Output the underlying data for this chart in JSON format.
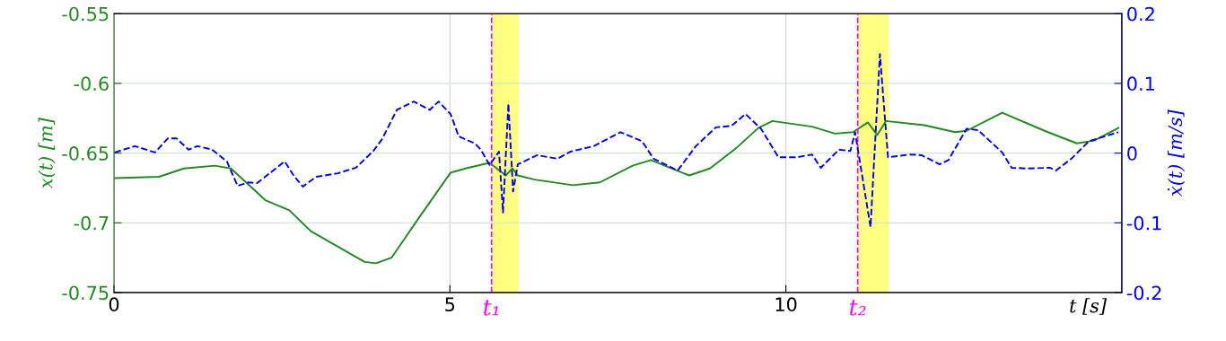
{
  "chart_data": {
    "type": "line",
    "xlabel": "t [s]",
    "ylabel": "x(t) [m]",
    "y2label": "ẋ(t) [m/s]",
    "xlim": [
      0,
      15
    ],
    "xticks": [
      0,
      5,
      10
    ],
    "ylim": [
      -0.75,
      -0.55
    ],
    "yticks": [
      -0.75,
      -0.7,
      -0.65,
      -0.6,
      -0.55
    ],
    "y2lim": [
      -0.2,
      0.2
    ],
    "y2ticks": [
      -0.2,
      -0.1,
      0,
      0.1,
      0.2
    ],
    "grid": true,
    "legend": false,
    "series": [
      {
        "color": "#1e8c1e",
        "line_style": "solid",
        "x": [
          0.01,
          0.67,
          1.04,
          1.5,
          1.74,
          2.26,
          2.61,
          2.93,
          3.73,
          3.9,
          4.13,
          4.53,
          5.01,
          5.23,
          5.5,
          5.59,
          5.83,
          5.93,
          6.01,
          6.26,
          6.83,
          7.23,
          7.72,
          7.99,
          8.56,
          8.87,
          9.27,
          9.59,
          9.8,
          10.39,
          10.73,
          11.0,
          11.22,
          11.36,
          11.49,
          12.06,
          12.52,
          12.69,
          13.22,
          13.85,
          14.33,
          14.59,
          14.95
        ],
        "values": [
          -0.668,
          -0.667,
          -0.661,
          -0.659,
          -0.661,
          -0.684,
          -0.691,
          -0.706,
          -0.728,
          -0.729,
          -0.725,
          -0.697,
          -0.664,
          -0.661,
          -0.658,
          -0.657,
          -0.666,
          -0.661,
          -0.666,
          -0.669,
          -0.673,
          -0.671,
          -0.659,
          -0.655,
          -0.666,
          -0.661,
          -0.646,
          -0.632,
          -0.627,
          -0.631,
          -0.636,
          -0.635,
          -0.628,
          -0.637,
          -0.627,
          -0.63,
          -0.635,
          -0.634,
          -0.621,
          -0.634,
          -0.643,
          -0.641,
          -0.632
        ]
      },
      {
        "color": "#0000ff",
        "line_style": "dashed",
        "axis": "y2",
        "x": [
          0.01,
          0.31,
          0.61,
          0.8,
          0.93,
          1.11,
          1.24,
          1.46,
          1.68,
          1.84,
          2.0,
          2.13,
          2.54,
          2.68,
          2.81,
          3.01,
          3.33,
          3.6,
          3.86,
          3.99,
          4.21,
          4.46,
          4.7,
          4.83,
          5.01,
          5.13,
          5.37,
          5.46,
          5.59,
          5.73,
          5.79,
          5.87,
          5.94,
          6.01,
          6.3,
          6.6,
          6.79,
          7.14,
          7.54,
          7.86,
          8.03,
          8.39,
          8.66,
          8.96,
          9.19,
          9.4,
          9.63,
          9.89,
          10.16,
          10.39,
          10.52,
          10.79,
          10.96,
          11.03,
          11.26,
          11.4,
          11.52,
          11.85,
          12.02,
          12.29,
          12.42,
          12.69,
          12.86,
          13.22,
          13.36,
          13.58,
          13.93,
          14.02,
          14.25,
          14.51,
          14.95
        ],
        "values": [
          0.001,
          0.01,
          0.001,
          0.021,
          0.021,
          0.005,
          0.01,
          0.005,
          -0.012,
          -0.047,
          -0.042,
          -0.043,
          -0.012,
          -0.033,
          -0.048,
          -0.034,
          -0.029,
          -0.021,
          0.003,
          0.02,
          0.062,
          0.074,
          0.062,
          0.074,
          0.056,
          0.024,
          0.014,
          0.005,
          -0.017,
          0.002,
          -0.085,
          0.071,
          -0.055,
          -0.016,
          -0.003,
          -0.008,
          0.002,
          0.01,
          0.03,
          0.017,
          -0.008,
          -0.025,
          0.01,
          0.037,
          0.039,
          0.056,
          0.035,
          -0.006,
          -0.006,
          -0.002,
          -0.021,
          0.005,
          0.003,
          0.03,
          -0.106,
          0.142,
          -0.006,
          -0.002,
          -0.003,
          -0.016,
          -0.01,
          0.035,
          0.033,
          0.001,
          -0.021,
          -0.022,
          -0.021,
          -0.025,
          -0.008,
          0.017,
          0.03
        ]
      }
    ],
    "ref_lines": [
      {
        "axis": "x",
        "value": 5.62,
        "label": "t₁",
        "color": "#ff00ff",
        "line_style": "dashed"
      },
      {
        "axis": "x",
        "value": 11.07,
        "label": "t₂",
        "color": "#ff00ff",
        "line_style": "dashed"
      }
    ],
    "bands": [
      {
        "axis": "x",
        "from": 5.62,
        "to": 6.02,
        "color": "#ffff00"
      },
      {
        "axis": "x",
        "from": 11.07,
        "to": 11.53,
        "color": "#ffff00"
      }
    ]
  }
}
